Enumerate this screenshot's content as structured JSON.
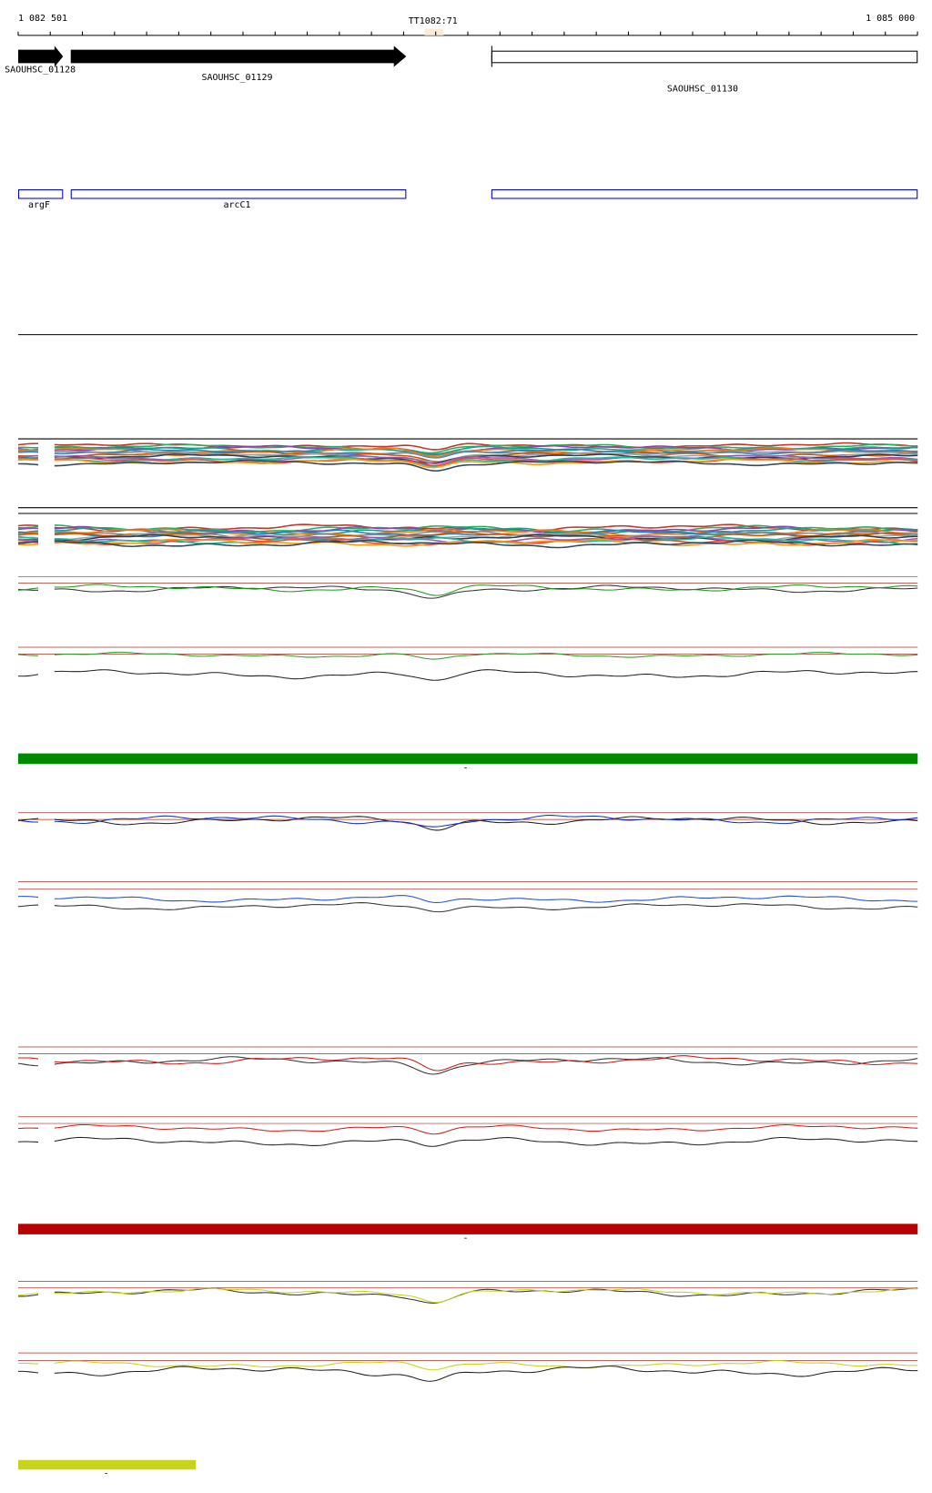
{
  "ruler": {
    "start": "1 082 501",
    "marker": "TT1082:71",
    "end": "1 085 000"
  },
  "genes": [
    {
      "label": "SAOUHSC_01128"
    },
    {
      "label": "SAOUHSC_01129"
    },
    {
      "label": "SAOUHSC_01130"
    }
  ],
  "features": [
    {
      "label": "argF"
    },
    {
      "label": "arcC1"
    }
  ],
  "track_markers": [
    "-",
    "-",
    "-"
  ]
}
